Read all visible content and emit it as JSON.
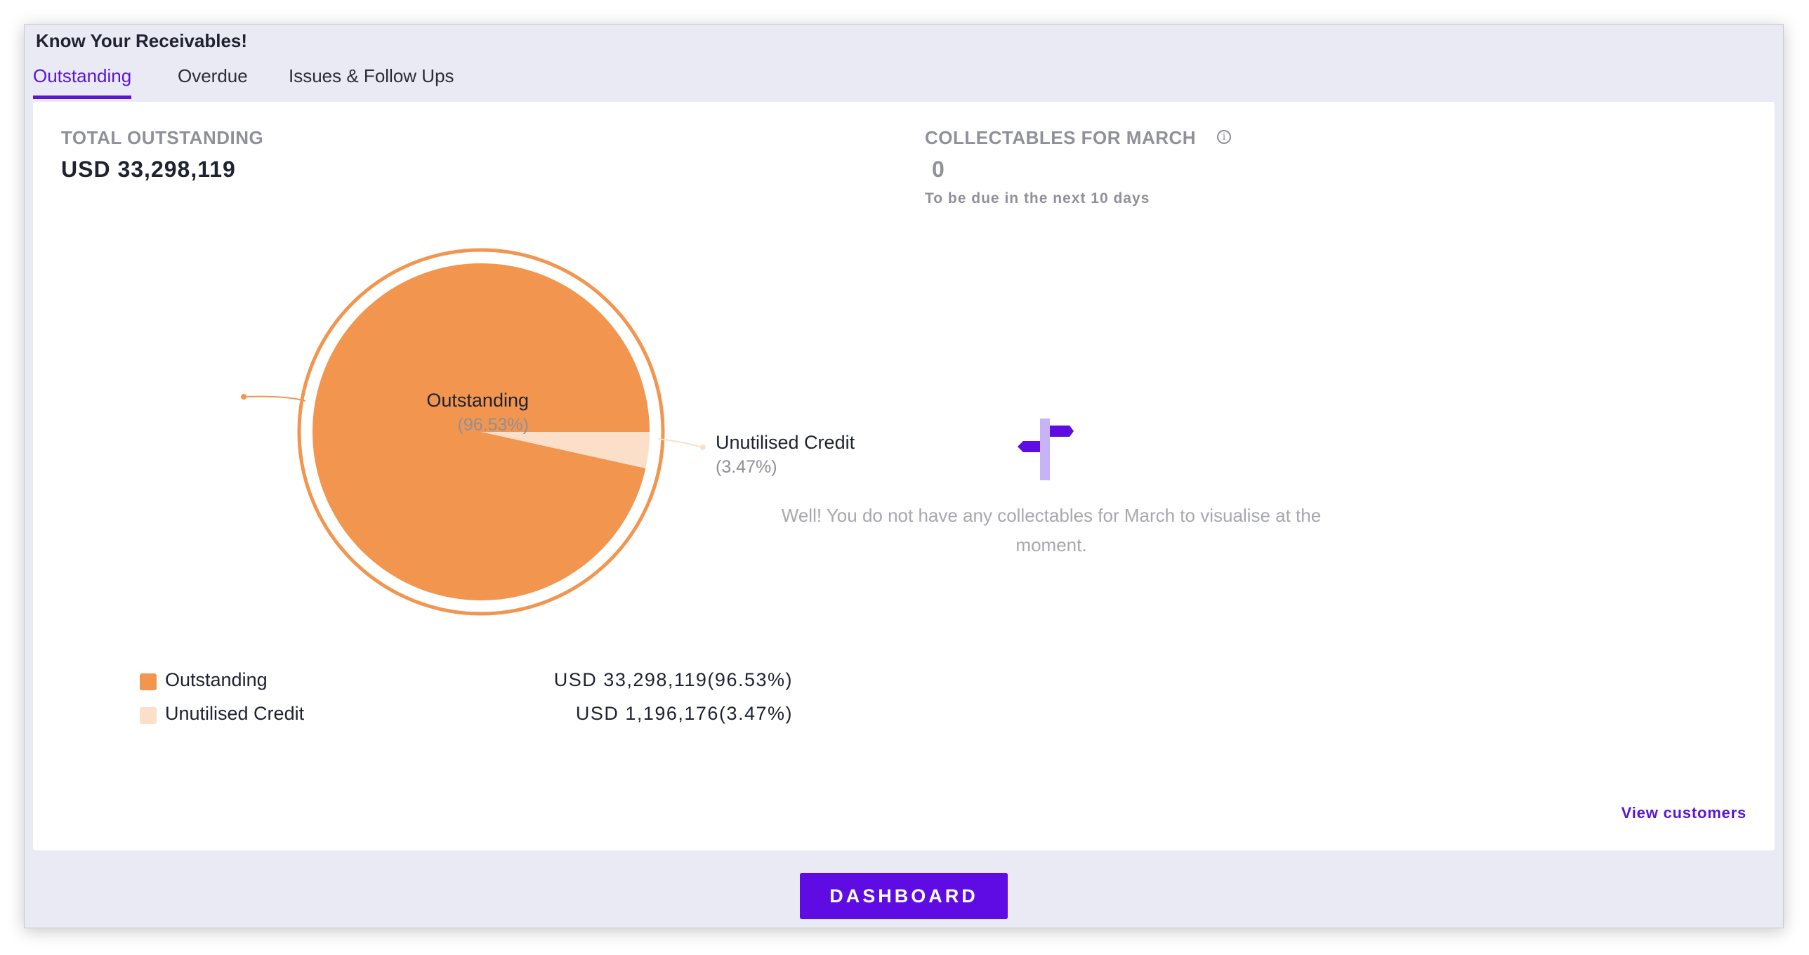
{
  "header": {
    "title": "Know Your Receivables!"
  },
  "tabs": [
    {
      "label": "Outstanding",
      "active": true
    },
    {
      "label": "Overdue",
      "active": false
    },
    {
      "label": "Issues & Follow Ups",
      "active": false
    }
  ],
  "total": {
    "label": "TOTAL OUTSTANDING",
    "value": "USD 33,298,119"
  },
  "collectables": {
    "label": "COLLECTABLES FOR MARCH",
    "info_icon": "info-circle-icon",
    "value": "0",
    "subtitle": "To be due in the next 10 days",
    "empty_icon": "signpost-icon",
    "empty_message": "Well! You do not have any collectables for March to visualise at the moment.",
    "view_link": "View customers"
  },
  "chart_data": {
    "type": "pie",
    "slices": [
      {
        "name": "Outstanding",
        "percent": 96.53,
        "pct_label": "(96.53%)",
        "amount": "USD 33,298,119(96.53%)",
        "color": "#f2954f"
      },
      {
        "name": "Unutilised Credit",
        "percent": 3.47,
        "pct_label": "(3.47%)",
        "amount": "USD 1,196,176(3.47%)",
        "color": "#fbdfc9"
      }
    ],
    "legend_position": "bottom"
  },
  "colors": {
    "accent": "#5b16d4",
    "button": "#5f0be3",
    "outstanding": "#f2954f",
    "unutilised": "#fbdfc9"
  },
  "footer": {
    "button_label": "DASHBOARD"
  }
}
